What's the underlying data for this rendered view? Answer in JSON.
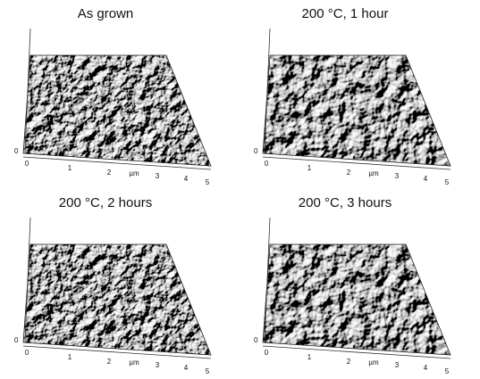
{
  "panels": [
    {
      "title": "As grown",
      "x_labels": [
        "0",
        "1",
        "2",
        "µm",
        "3",
        "4",
        "5"
      ],
      "z_label": "0"
    },
    {
      "title": "200 °C, 1 hour",
      "x_labels": [
        "0",
        "1",
        "2",
        "µm",
        "3",
        "4",
        "5"
      ],
      "z_label": "0"
    },
    {
      "title": "200 °C, 2 hours",
      "x_labels": [
        "0",
        "1",
        "2",
        "µm",
        "3",
        "4",
        "5"
      ],
      "z_label": "0"
    },
    {
      "title": "200 °C, 3 hours",
      "x_labels": [
        "0",
        "1",
        "2",
        "µm",
        "3",
        "4",
        "5"
      ],
      "z_label": "0"
    }
  ]
}
